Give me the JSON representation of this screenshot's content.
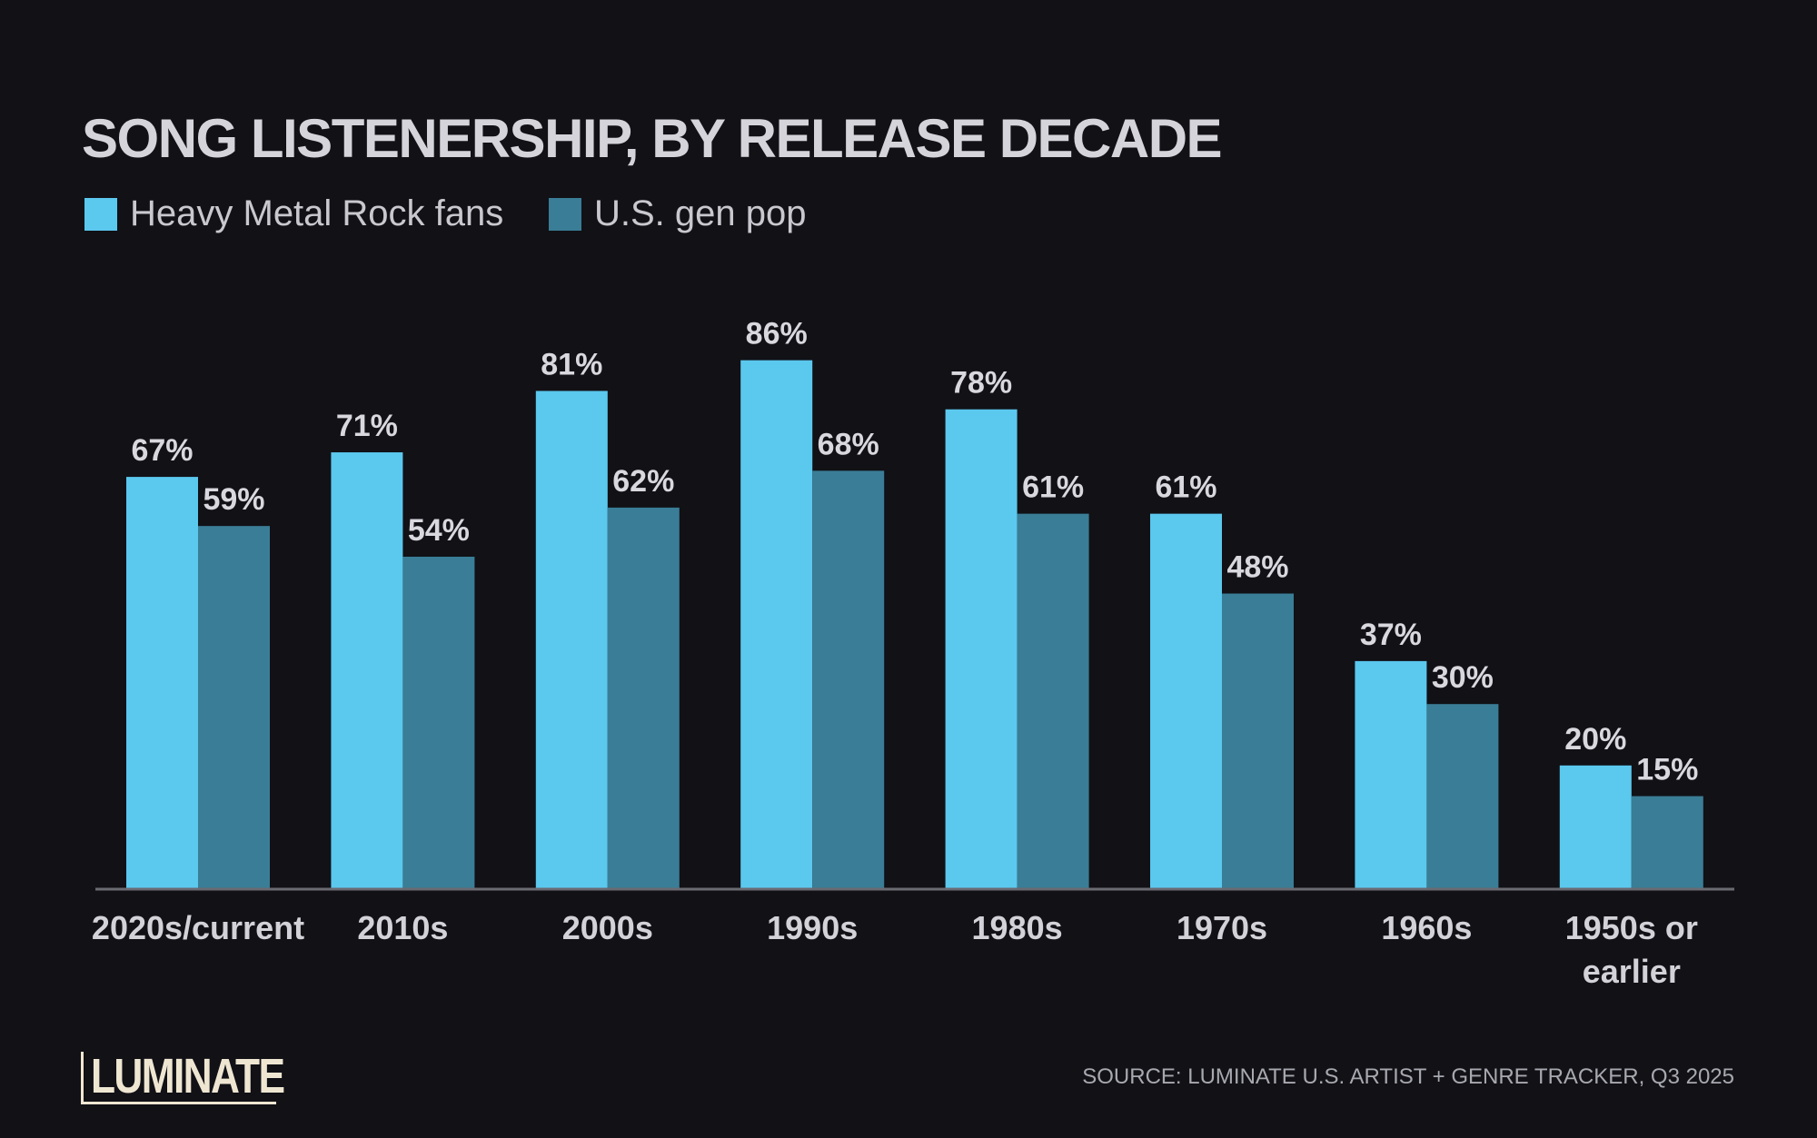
{
  "chart_data": {
    "type": "bar",
    "title": "SONG LISTENERSHIP, BY RELEASE DECADE",
    "categories": [
      "2020s/current",
      "2010s",
      "2000s",
      "1990s",
      "1980s",
      "1970s",
      "1960s",
      "1950s or earlier"
    ],
    "series": [
      {
        "name": "Heavy Metal Rock fans",
        "color": "#5bc8ee",
        "values": [
          67,
          71,
          81,
          86,
          78,
          61,
          37,
          20
        ]
      },
      {
        "name": "U.S. gen pop",
        "color": "#3a7d96",
        "values": [
          59,
          54,
          62,
          68,
          61,
          48,
          30,
          15
        ]
      }
    ],
    "value_suffix": "%",
    "ylim": [
      0,
      100
    ],
    "grid": false,
    "legend_position": "top-left",
    "xlabel": "",
    "ylabel": ""
  },
  "source": "SOURCE: LUMINATE U.S. ARTIST + GENRE TRACKER, Q3 2025",
  "logo": "LUMINATE",
  "colors": {
    "background": "#111116",
    "text": "#d2d2d8"
  }
}
